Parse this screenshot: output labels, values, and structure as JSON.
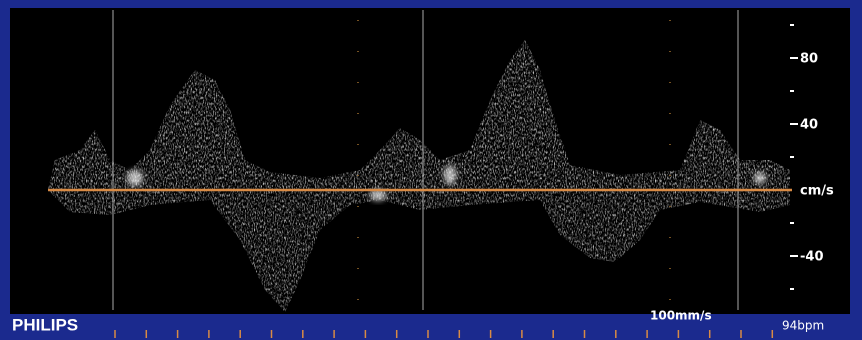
{
  "brand": "PHILIPS",
  "scale": {
    "unit": "cm/s",
    "ticks": [
      80,
      40,
      -40
    ]
  },
  "sweep_speed": "100mm/s",
  "heart_rate": "94bpm"
}
